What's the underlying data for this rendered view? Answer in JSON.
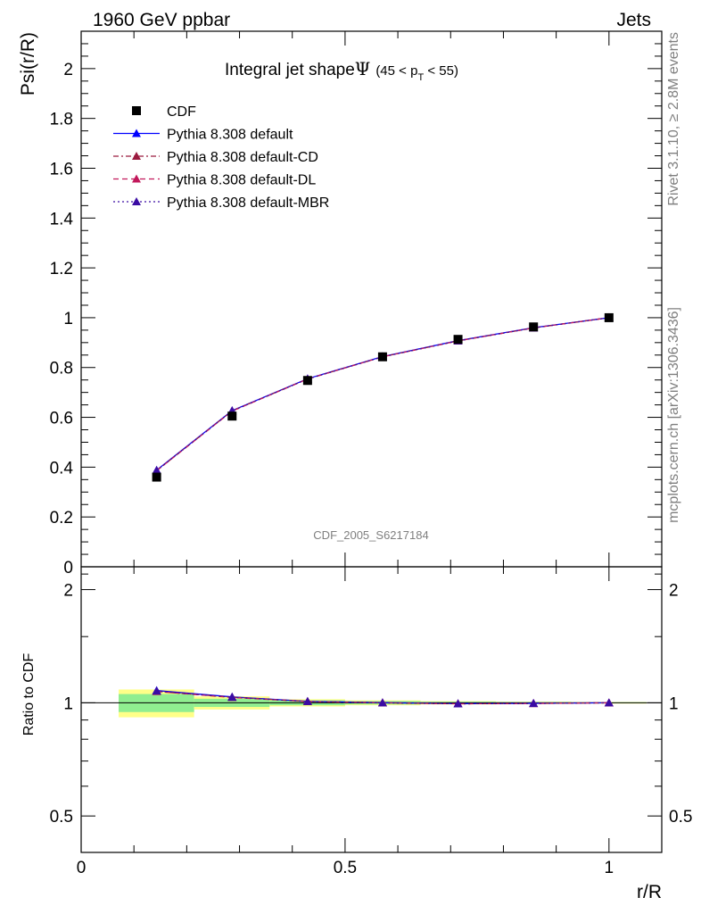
{
  "header": {
    "left_label": "1960 GeV ppbar",
    "right_label": "Jets"
  },
  "side_labels": {
    "rivet": "Rivet 3.1.10, ≥ 2.8M events",
    "mcplots": "mcplots.cern.ch [arXiv:1306.3436]"
  },
  "chart_data": [
    {
      "type": "line",
      "title": {
        "main": "Integral jet shape",
        "symbol": "Ψ",
        "range_open": "(45 < p",
        "range_sub": "T",
        "range_close": " < 55)"
      },
      "watermark": "CDF_2005_S6217184",
      "ylabel": "Psi(r/R)",
      "xlim": [
        0,
        1.1
      ],
      "ylim": [
        0,
        2.15
      ],
      "y_ticks": [
        0,
        0.2,
        0.4,
        0.6,
        0.8,
        1,
        1.2,
        1.4,
        1.6,
        1.8,
        2
      ],
      "y_tick_labels": [
        "0",
        "0.2",
        "0.4",
        "0.6",
        "0.8",
        "1",
        "1.2",
        "1.4",
        "1.6",
        "1.8",
        "2"
      ],
      "legend_placement": "top-left",
      "x": [
        0.143,
        0.286,
        0.429,
        0.571,
        0.714,
        0.857,
        1.0
      ],
      "data": {
        "name": "CDF",
        "y": [
          0.36,
          0.605,
          0.748,
          0.843,
          0.913,
          0.963,
          1.0
        ]
      },
      "series": [
        {
          "name": "Pythia 8.308 default",
          "color": "#0000ff",
          "dash": "solid",
          "y": [
            0.388,
            0.627,
            0.755,
            0.844,
            0.908,
            0.96,
            1.0
          ]
        },
        {
          "name": "Pythia 8.308 default-CD",
          "color": "#9b1b3f",
          "dash": "dashdot",
          "y": [
            0.386,
            0.626,
            0.754,
            0.843,
            0.907,
            0.959,
            1.0
          ]
        },
        {
          "name": "Pythia 8.308 default-DL",
          "color": "#c2185b",
          "dash": "dashed",
          "y": [
            0.386,
            0.625,
            0.754,
            0.843,
            0.907,
            0.959,
            1.0
          ]
        },
        {
          "name": "Pythia 8.308 default-MBR",
          "color": "#3a0ca3",
          "dash": "dotted",
          "y": [
            0.387,
            0.626,
            0.754,
            0.843,
            0.907,
            0.959,
            1.0
          ]
        }
      ]
    },
    {
      "type": "line",
      "ylabel": "Ratio to CDF",
      "xlabel": "r/R",
      "log_y": true,
      "xlim": [
        0,
        1.1
      ],
      "ylim": [
        0.4,
        2.3
      ],
      "x_ticks": [
        0,
        0.5,
        1
      ],
      "x_tick_labels": [
        "0",
        "0.5",
        "1"
      ],
      "y_ticks": [
        0.5,
        1,
        2
      ],
      "y_tick_labels": [
        "0.5",
        "1",
        "2"
      ],
      "bands": {
        "x_edges": [
          [
            0.071,
            0.214
          ],
          [
            0.214,
            0.357
          ],
          [
            0.357,
            0.5
          ],
          [
            0.5,
            0.643
          ],
          [
            0.643,
            0.786
          ],
          [
            0.786,
            0.929
          ],
          [
            0.929,
            1.071
          ]
        ],
        "inner": [
          [
            0.945,
            1.055
          ],
          [
            0.975,
            1.025
          ],
          [
            0.985,
            1.015
          ],
          [
            0.99,
            1.01
          ],
          [
            0.993,
            1.007
          ],
          [
            0.995,
            1.005
          ],
          [
            0.997,
            1.003
          ]
        ],
        "outer": [
          [
            0.915,
            1.085
          ],
          [
            0.96,
            1.04
          ],
          [
            0.978,
            1.022
          ],
          [
            0.985,
            1.015
          ],
          [
            0.99,
            1.01
          ],
          [
            0.993,
            1.007
          ],
          [
            0.995,
            1.005
          ]
        ],
        "inner_color": "#90ee90",
        "outer_color": "#ffff88"
      },
      "reference": 1,
      "x": [
        0.143,
        0.286,
        0.429,
        0.571,
        0.714,
        0.857,
        1.0
      ],
      "series": [
        {
          "name": "Pythia 8.308 default",
          "color": "#0000ff",
          "dash": "solid",
          "y": [
            1.078,
            1.037,
            1.009,
            1.001,
            0.995,
            0.997,
            1.0
          ]
        },
        {
          "name": "Pythia 8.308 default-CD",
          "color": "#9b1b3f",
          "dash": "dashdot",
          "y": [
            1.072,
            1.035,
            1.008,
            1.0,
            0.994,
            0.996,
            1.0
          ]
        },
        {
          "name": "Pythia 8.308 default-DL",
          "color": "#c2185b",
          "dash": "dashed",
          "y": [
            1.072,
            1.033,
            1.008,
            1.0,
            0.994,
            0.996,
            1.0
          ]
        },
        {
          "name": "Pythia 8.308 default-MBR",
          "color": "#3a0ca3",
          "dash": "dotted",
          "y": [
            1.075,
            1.035,
            1.008,
            1.0,
            0.994,
            0.996,
            1.0
          ]
        }
      ]
    }
  ]
}
